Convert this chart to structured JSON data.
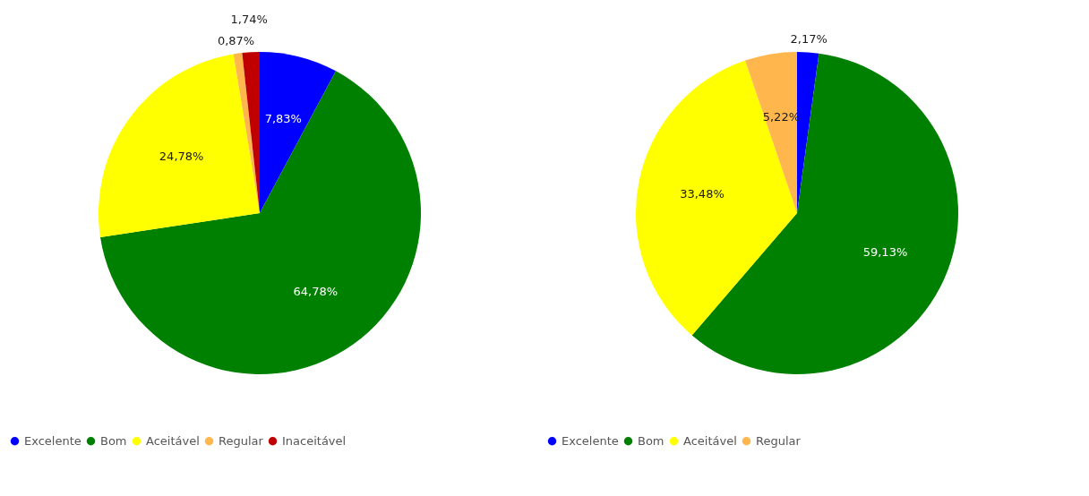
{
  "chart_data": [
    {
      "type": "pie",
      "categories": [
        "Excelente",
        "Bom",
        "Aceitável",
        "Regular",
        "Inaceitável"
      ],
      "values": [
        7.83,
        64.78,
        24.78,
        0.87,
        1.74
      ],
      "colors": [
        "#0000ff",
        "#008000",
        "#ffff00",
        "#ffb74d",
        "#c00000"
      ],
      "value_labels": [
        "7,83%",
        "64,78%",
        "24,78%",
        "0,87%",
        "1,74%"
      ],
      "legend": "bottom"
    },
    {
      "type": "pie",
      "categories": [
        "Excelente",
        "Bom",
        "Aceitável",
        "Regular"
      ],
      "values": [
        2.17,
        59.13,
        33.48,
        5.22
      ],
      "colors": [
        "#0000ff",
        "#008000",
        "#ffff00",
        "#ffb74d"
      ],
      "value_labels": [
        "2,17%",
        "59,13%",
        "33,48%",
        "5,22%"
      ],
      "legend": "bottom"
    }
  ]
}
